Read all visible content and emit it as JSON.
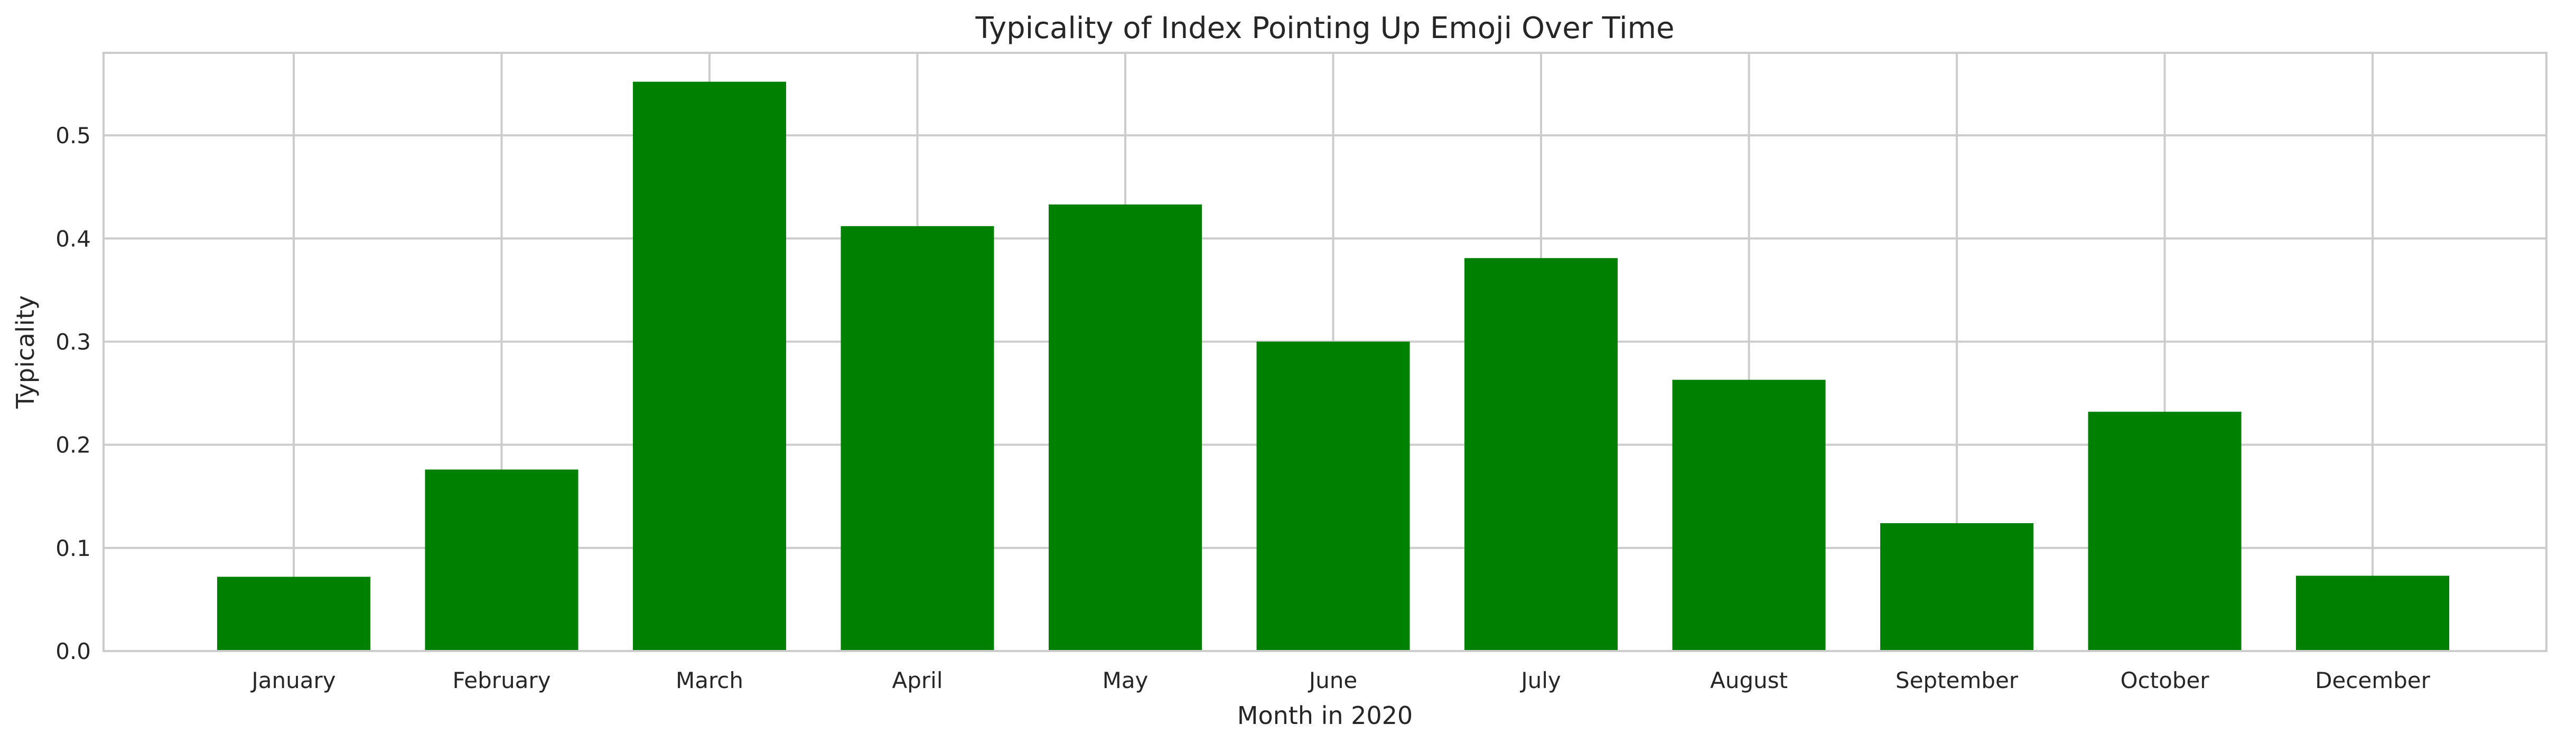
{
  "chart_data": {
    "type": "bar",
    "title": "Typicality of Index Pointing Up Emoji Over Time",
    "xlabel": "Month in 2020",
    "ylabel": "Typicality",
    "categories": [
      "January",
      "February",
      "March",
      "April",
      "May",
      "June",
      "July",
      "August",
      "September",
      "October",
      "December"
    ],
    "values": [
      0.072,
      0.176,
      0.552,
      0.412,
      0.433,
      0.3,
      0.381,
      0.263,
      0.124,
      0.232,
      0.073
    ],
    "ylim": [
      0,
      0.58
    ],
    "yticks": [
      0.0,
      0.1,
      0.2,
      0.3,
      0.4,
      0.5
    ],
    "ytick_labels": [
      "0.0",
      "0.1",
      "0.2",
      "0.3",
      "0.4",
      "0.5"
    ],
    "grid": true,
    "bar_color": "#008000",
    "grid_color": "#cccccc",
    "text_color": "#262626"
  }
}
